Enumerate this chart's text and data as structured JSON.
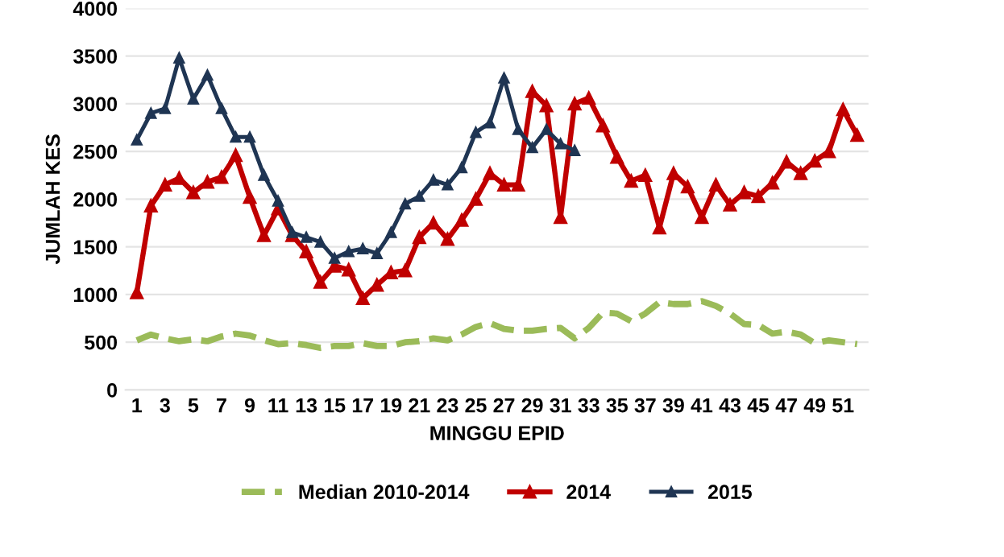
{
  "chart_data": {
    "type": "line",
    "xlabel": "MINGGU EPID",
    "ylabel": "JUMLAH KES",
    "categories": [
      "1",
      null,
      "3",
      null,
      "5",
      null,
      "7",
      null,
      "9",
      null,
      "11",
      null,
      "13",
      null,
      "15",
      null,
      "17",
      null,
      "19",
      null,
      "21",
      null,
      "23",
      null,
      "25",
      null,
      "27",
      null,
      "29",
      null,
      "31",
      null,
      "33",
      null,
      "35",
      null,
      "37",
      null,
      "39",
      null,
      "41",
      null,
      "43",
      null,
      "45",
      null,
      "47",
      null,
      "49",
      null,
      "51",
      null
    ],
    "series": [
      {
        "name": "Median 2010-2014",
        "color": "#9bbb59",
        "line_style": "dashed",
        "marker": "none",
        "values": [
          520,
          580,
          540,
          510,
          530,
          510,
          560,
          590,
          570,
          520,
          480,
          490,
          470,
          440,
          460,
          460,
          490,
          460,
          460,
          500,
          510,
          540,
          520,
          580,
          660,
          700,
          640,
          620,
          620,
          640,
          650,
          540,
          650,
          810,
          800,
          720,
          800,
          920,
          900,
          900,
          930,
          880,
          800,
          690,
          680,
          590,
          610,
          580,
          490,
          520,
          500,
          480
        ]
      },
      {
        "name": "2014",
        "color": "#c00000",
        "line_style": "solid",
        "marker": "triangle",
        "values": [
          1020,
          1930,
          2150,
          2220,
          2070,
          2180,
          2230,
          2460,
          2020,
          1620,
          1900,
          1620,
          1450,
          1130,
          1300,
          1260,
          960,
          1100,
          1230,
          1250,
          1600,
          1750,
          1580,
          1780,
          2000,
          2270,
          2150,
          2150,
          3130,
          2980,
          1810,
          3000,
          3060,
          2770,
          2440,
          2190,
          2250,
          1700,
          2270,
          2130,
          1810,
          2150,
          1940,
          2070,
          2030,
          2170,
          2390,
          2270,
          2400,
          2500,
          2940,
          2670
        ]
      },
      {
        "name": "2015",
        "color": "#1f3553",
        "line_style": "solid",
        "marker": "triangle",
        "values": [
          2620,
          2900,
          2950,
          3480,
          3050,
          3300,
          2950,
          2650,
          2650,
          2250,
          1980,
          1650,
          1600,
          1550,
          1380,
          1450,
          1480,
          1430,
          1650,
          1950,
          2030,
          2200,
          2150,
          2330,
          2700,
          2800,
          3270,
          2730,
          2540,
          2730,
          2580,
          2510,
          null,
          null,
          null,
          null,
          null,
          null,
          null,
          null,
          null,
          null,
          null,
          null,
          null,
          null,
          null,
          null,
          null,
          null,
          null,
          null
        ]
      }
    ],
    "ylim": [
      0,
      4000
    ],
    "yticks": [
      0,
      500,
      1000,
      1500,
      2000,
      2500,
      3000,
      3500,
      4000
    ],
    "grid": "y",
    "legend": "bottom"
  }
}
